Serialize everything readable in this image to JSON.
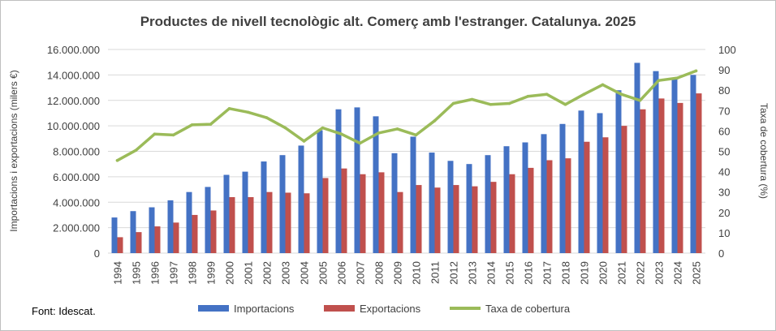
{
  "chart_data": {
    "type": "bar+line",
    "title": "Productes de nivell tecnològic alt. Comerç amb l'estranger. Catalunya. 2025",
    "ylabel_left": "Importacions i exportacions (milers €)",
    "ylabel_right": "Taxa de cobertura (%)",
    "source": "Font: Idescat.",
    "categories": [
      "1994",
      "1995",
      "1996",
      "1997",
      "1998",
      "1999",
      "2000",
      "2001",
      "2002",
      "2003",
      "2004",
      "2005",
      "2006",
      "2007",
      "2008",
      "2009",
      "2010",
      "2011",
      "2012",
      "2013",
      "2014",
      "2015",
      "2016",
      "2017",
      "2018",
      "2019",
      "2020",
      "2021",
      "2022",
      "2023",
      "2024",
      "2025"
    ],
    "left_axis": {
      "ylim": [
        0,
        16000000
      ],
      "ticks": [
        0,
        2000000,
        4000000,
        6000000,
        8000000,
        10000000,
        12000000,
        14000000,
        16000000
      ],
      "tick_labels": [
        "0",
        "2.000.000",
        "4.000.000",
        "6.000.000",
        "8.000.000",
        "10.000.000",
        "12.000.000",
        "14.000.000",
        "16.000.000"
      ]
    },
    "right_axis": {
      "ylim": [
        0,
        100
      ],
      "ticks": [
        0,
        10,
        20,
        30,
        40,
        50,
        60,
        70,
        80,
        90,
        100
      ],
      "tick_labels": [
        "0",
        "10",
        "20",
        "30",
        "40",
        "50",
        "60",
        "70",
        "80",
        "90",
        "100"
      ]
    },
    "series": [
      {
        "name": "Importacions",
        "type": "bar",
        "axis": "left",
        "color": "#4472c4",
        "values": [
          2800000,
          3300000,
          3600000,
          4150000,
          4800000,
          5200000,
          6150000,
          6400000,
          7200000,
          7700000,
          8450000,
          9650000,
          11300000,
          11450000,
          10750000,
          7850000,
          9150000,
          7900000,
          7250000,
          7000000,
          7700000,
          8400000,
          8700000,
          9350000,
          10150000,
          11200000,
          11000000,
          12800000,
          14950000,
          14300000,
          13700000,
          14000000
        ]
      },
      {
        "name": "Exportacions",
        "type": "bar",
        "axis": "left",
        "color": "#c0504d",
        "values": [
          1250000,
          1650000,
          2100000,
          2400000,
          3000000,
          3350000,
          4400000,
          4400000,
          4800000,
          4750000,
          4700000,
          5900000,
          6650000,
          6200000,
          6350000,
          4800000,
          5350000,
          5150000,
          5350000,
          5250000,
          5600000,
          6200000,
          6700000,
          7300000,
          7450000,
          8750000,
          9100000,
          10000000,
          11300000,
          12150000,
          11800000,
          12550000
        ]
      },
      {
        "name": "Taxa de cobertura",
        "type": "line",
        "axis": "right",
        "color": "#9bbb59",
        "values": [
          45.5,
          50.5,
          58.5,
          58,
          63,
          63.3,
          71,
          69.2,
          66.5,
          61.5,
          55,
          61.5,
          58.5,
          54,
          59,
          61,
          58,
          65,
          73.5,
          75.5,
          73,
          73.5,
          77,
          78,
          73,
          78,
          82.7,
          78,
          75,
          84.8,
          86,
          89.5
        ]
      }
    ]
  }
}
